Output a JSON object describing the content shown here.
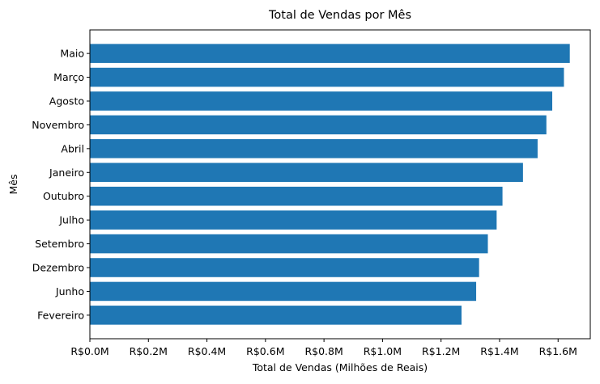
{
  "chart_data": {
    "type": "bar",
    "orientation": "horizontal",
    "title": "Total de Vendas por Mês",
    "xlabel": "Total de Vendas (Milhões de Reais)",
    "ylabel": "Mês",
    "categories": [
      "Maio",
      "Março",
      "Agosto",
      "Novembro",
      "Abril",
      "Janeiro",
      "Outubro",
      "Julho",
      "Setembro",
      "Dezembro",
      "Junho",
      "Fevereiro"
    ],
    "values": [
      1.64,
      1.62,
      1.58,
      1.56,
      1.53,
      1.48,
      1.41,
      1.39,
      1.36,
      1.33,
      1.32,
      1.27
    ],
    "value_unit": "millions BRL",
    "xlim": [
      0,
      1.71
    ],
    "x_ticks": [
      0.0,
      0.2,
      0.4,
      0.6,
      0.8,
      1.0,
      1.2,
      1.4,
      1.6
    ],
    "x_tick_labels": [
      "R$0.0M",
      "R$0.2M",
      "R$0.4M",
      "R$0.6M",
      "R$0.8M",
      "R$1.0M",
      "R$1.2M",
      "R$1.4M",
      "R$1.6M"
    ],
    "bar_color": "#1f77b4",
    "grid": false,
    "legend": "none"
  }
}
